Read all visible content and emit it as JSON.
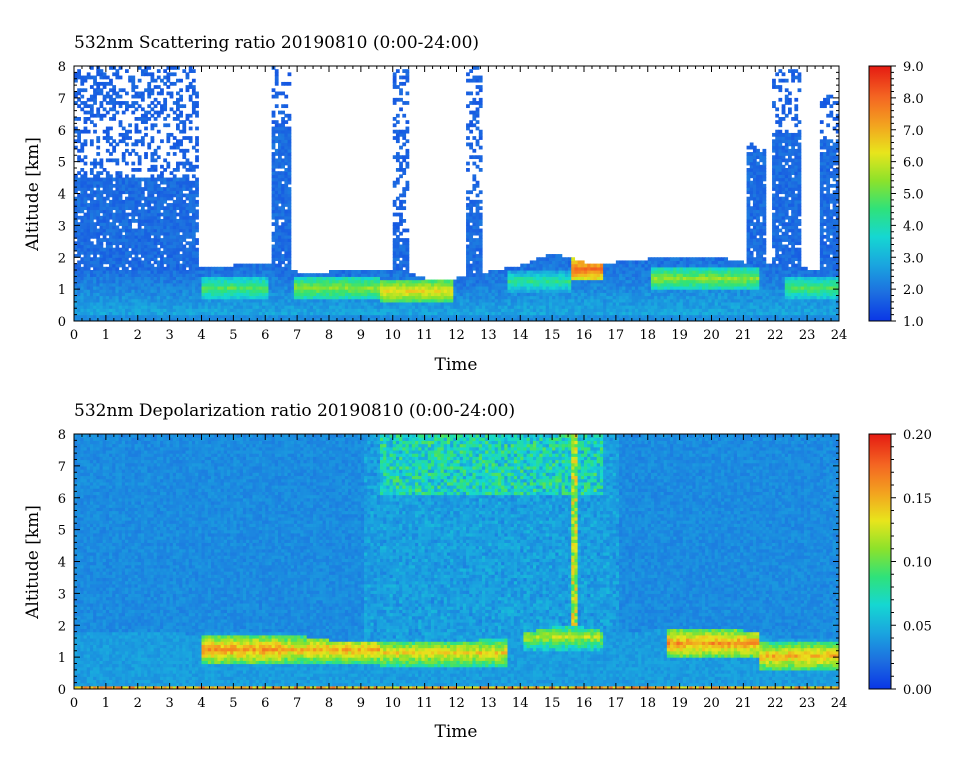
{
  "chart_data": [
    {
      "type": "heatmap",
      "title": "532nm Scattering ratio  20190810 (0:00-24:00)",
      "xlabel": "Time",
      "ylabel": "Altitude [km]",
      "xlim": [
        0,
        24
      ],
      "ylim": [
        0,
        8
      ],
      "x_ticks": [
        "0",
        "1",
        "2",
        "3",
        "4",
        "5",
        "6",
        "7",
        "8",
        "9",
        "10",
        "11",
        "12",
        "13",
        "14",
        "15",
        "16",
        "17",
        "18",
        "19",
        "20",
        "21",
        "22",
        "23",
        "24"
      ],
      "y_ticks": [
        "0",
        "1",
        "2",
        "3",
        "4",
        "5",
        "6",
        "7",
        "8"
      ],
      "colorbar": {
        "range": [
          1.0,
          9.0
        ],
        "ticks": [
          "1.0",
          "2.0",
          "3.0",
          "4.0",
          "5.0",
          "6.0",
          "7.0",
          "8.0",
          "9.0"
        ]
      },
      "missing_color": "#ffffff",
      "boundary_layer_top_km": [
        [
          0,
          1.6
        ],
        [
          1,
          1.6
        ],
        [
          2,
          1.6
        ],
        [
          3,
          1.6
        ],
        [
          3.9,
          1.6
        ],
        [
          4.2,
          1.7
        ],
        [
          5,
          1.7
        ],
        [
          6,
          1.8
        ],
        [
          7,
          1.5
        ],
        [
          8,
          1.5
        ],
        [
          9,
          1.6
        ],
        [
          10,
          1.6
        ],
        [
          11,
          1.3
        ],
        [
          12,
          1.3
        ],
        [
          13,
          1.5
        ],
        [
          14,
          1.7
        ],
        [
          15,
          2.1
        ],
        [
          16,
          1.8
        ],
        [
          17,
          1.8
        ],
        [
          18,
          1.9
        ],
        [
          19,
          2.0
        ],
        [
          20,
          2.0
        ],
        [
          21,
          1.8
        ],
        [
          22,
          1.7
        ],
        [
          23,
          1.6
        ],
        [
          24,
          1.6
        ]
      ],
      "cloud_columns": [
        {
          "x0": 0.0,
          "x1": 3.9,
          "top_km": 4.5,
          "sparse_top_km": 8.0
        },
        {
          "x0": 6.1,
          "x1": 6.7,
          "top_km": 6.0,
          "sparse_top_km": 8.0
        },
        {
          "x0": 9.9,
          "x1": 10.4,
          "top_km": 2.6,
          "sparse_top_km": 8.0
        },
        {
          "x0": 12.2,
          "x1": 12.7,
          "top_km": 3.8,
          "sparse_top_km": 8.0
        },
        {
          "x0": 21.1,
          "x1": 21.7,
          "top_km": 5.2,
          "sparse_top_km": 5.5
        },
        {
          "x0": 21.9,
          "x1": 22.8,
          "top_km": 5.8,
          "sparse_top_km": 7.8
        },
        {
          "x0": 23.4,
          "x1": 24.0,
          "top_km": 5.6,
          "sparse_top_km": 7.0
        }
      ],
      "high_value_layers": [
        {
          "x0": 4.0,
          "x1": 6.0,
          "alt_km": 1.0,
          "value": 4.5
        },
        {
          "x0": 6.8,
          "x1": 9.5,
          "alt_km": 1.0,
          "value": 5.0
        },
        {
          "x0": 9.5,
          "x1": 11.8,
          "alt_km": 0.9,
          "value": 6.0
        },
        {
          "x0": 13.5,
          "x1": 15.5,
          "alt_km": 1.2,
          "value": 4.0
        },
        {
          "x0": 15.5,
          "x1": 16.5,
          "alt_km": 1.6,
          "value": 7.5
        },
        {
          "x0": 18.0,
          "x1": 21.5,
          "alt_km": 1.3,
          "value": 5.0
        },
        {
          "x0": 22.3,
          "x1": 24.0,
          "alt_km": 1.0,
          "value": 4.5
        }
      ]
    },
    {
      "type": "heatmap",
      "title": "532nm Depolarization ratio  20190810 (0:00-24:00)",
      "xlabel": "Time",
      "ylabel": "Altitude [km]",
      "xlim": [
        0,
        24
      ],
      "ylim": [
        0,
        8
      ],
      "x_ticks": [
        "0",
        "1",
        "2",
        "3",
        "4",
        "5",
        "6",
        "7",
        "8",
        "9",
        "10",
        "11",
        "12",
        "13",
        "14",
        "15",
        "16",
        "17",
        "18",
        "19",
        "20",
        "21",
        "22",
        "23",
        "24"
      ],
      "y_ticks": [
        "0",
        "1",
        "2",
        "3",
        "4",
        "5",
        "6",
        "7",
        "8"
      ],
      "colorbar": {
        "range": [
          0.0,
          0.2
        ],
        "ticks": [
          "0.00",
          "0.05",
          "0.10",
          "0.15",
          "0.20"
        ]
      },
      "boundary_layer_top_km": [
        [
          0,
          1.8
        ],
        [
          2,
          1.8
        ],
        [
          3.5,
          1.7
        ],
        [
          4,
          1.7
        ],
        [
          6,
          1.8
        ],
        [
          8,
          1.5
        ],
        [
          10,
          1.5
        ],
        [
          12,
          1.4
        ],
        [
          14,
          1.7
        ],
        [
          15.5,
          2.0
        ],
        [
          17,
          1.7
        ],
        [
          19,
          1.9
        ],
        [
          21,
          1.8
        ],
        [
          22,
          1.6
        ],
        [
          24,
          1.5
        ]
      ],
      "high_value_layers": [
        {
          "x0": 4.0,
          "x1": 6.5,
          "alt_km": 1.2,
          "value": 0.16
        },
        {
          "x0": 6.5,
          "x1": 9.5,
          "alt_km": 1.2,
          "value": 0.15
        },
        {
          "x0": 9.5,
          "x1": 13.5,
          "alt_km": 1.1,
          "value": 0.14
        },
        {
          "x0": 14.0,
          "x1": 16.5,
          "alt_km": 1.6,
          "value": 0.12
        },
        {
          "x0": 18.5,
          "x1": 21.5,
          "alt_km": 1.4,
          "value": 0.16
        },
        {
          "x0": 21.5,
          "x1": 24.0,
          "alt_km": 1.0,
          "value": 0.15
        }
      ],
      "dust_column": {
        "x": 15.7,
        "alt_km_from": 2.0,
        "alt_km_to": 8.0,
        "value": 0.12
      },
      "surface_layer": {
        "alt_km": 0.05,
        "value": 0.15
      }
    }
  ]
}
